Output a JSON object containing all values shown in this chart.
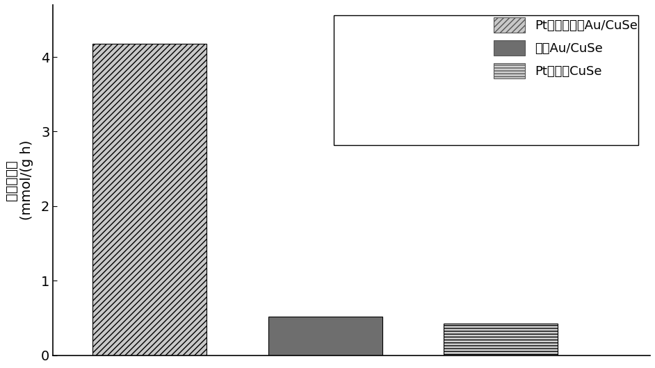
{
  "categories": [
    "Pt修饰的切向Au/CuSe",
    "切向Au/CuSe",
    "Pt修饰的CuSe"
  ],
  "values": [
    4.18,
    0.52,
    0.42
  ],
  "bar_positions": [
    1,
    2,
    3
  ],
  "bar_width": 0.65,
  "ylim": [
    0,
    4.7
  ],
  "yticks": [
    0,
    1,
    2,
    3,
    4
  ],
  "ylabel_line1": "产氢气速率",
  "ylabel_line2": "(mmol/(g h)",
  "colors": [
    "#c8c8c8",
    "#6e6e6e",
    "#d0d0d0"
  ],
  "hatch_patterns": [
    "////",
    "",
    "----"
  ],
  "legend_labels": [
    "Pt修饰的切向Au/CuSe",
    "切向Au/CuSe",
    "Pt修饰的CuSe"
  ],
  "legend_colors": [
    "#c8c8c8",
    "#6e6e6e",
    "#d0d0d0"
  ],
  "legend_hatches": [
    "////",
    "",
    "----"
  ],
  "figsize": [
    9.42,
    5.3
  ],
  "dpi": 100
}
